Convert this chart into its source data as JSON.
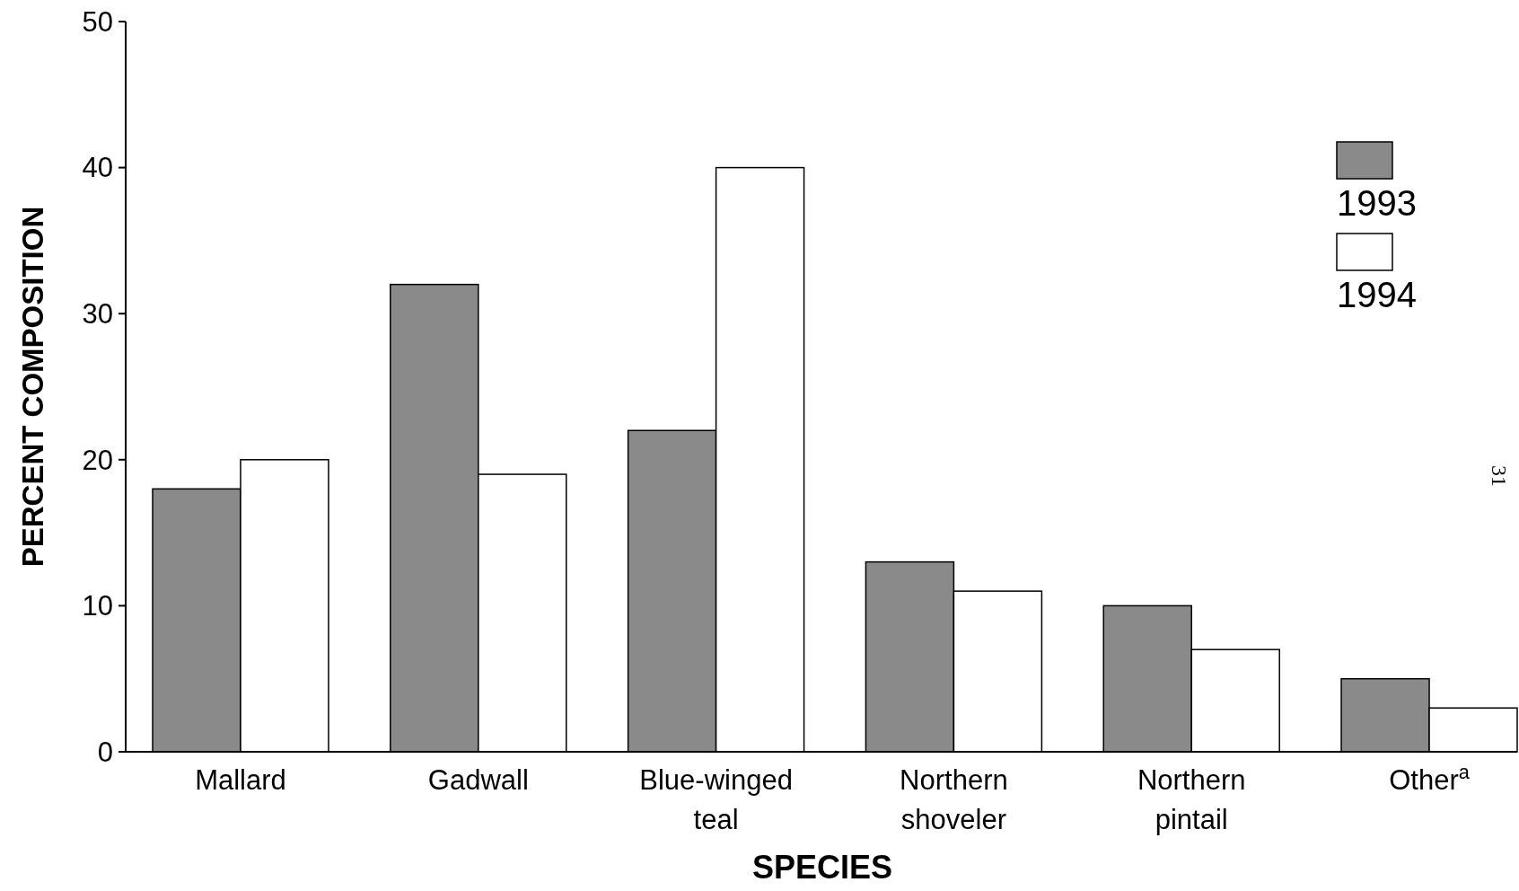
{
  "chart_data": {
    "type": "bar",
    "xlabel": "SPECIES",
    "ylabel": "PERCENT COMPOSITION",
    "categories": [
      "Mallard",
      "Gadwall",
      "Blue-winged teal",
      "Northern shoveler",
      "Northern pintail",
      "Other$^{a}$"
    ],
    "series": [
      {
        "name": "1993",
        "color": "#8a8a8a",
        "values": [
          18,
          32,
          22,
          13,
          10,
          5
        ]
      },
      {
        "name": "1994",
        "color": "#ffffff",
        "values": [
          20,
          19,
          40,
          11,
          7,
          3
        ]
      }
    ],
    "ylim": [
      0,
      50
    ],
    "yticks": [
      0,
      10,
      20,
      30,
      40,
      50
    ],
    "grid": false,
    "legend": "top right",
    "annotations": [
      "31"
    ]
  }
}
